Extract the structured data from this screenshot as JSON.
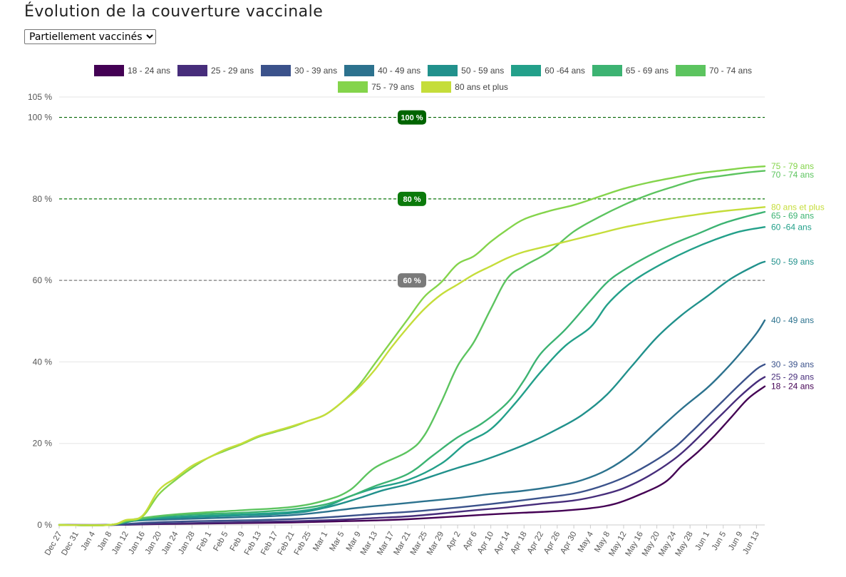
{
  "page": {
    "title": "Évolution de la couverture vaccinale",
    "selected_option": "Partiellement vaccinés"
  },
  "chart_data": {
    "type": "line",
    "title": "Évolution de la couverture vaccinale",
    "xlabel": "",
    "ylabel": "",
    "ylim": [
      0,
      105
    ],
    "yticks": [
      0,
      20,
      40,
      60,
      80,
      100,
      105
    ],
    "ytick_labels": [
      "0 %",
      "20 %",
      "40 %",
      "60 %",
      "80 %",
      "100 %",
      "105 %"
    ],
    "x_tick_labels": [
      "Dec 27",
      "Dec 31",
      "Jan 4",
      "Jan 8",
      "Jan 12",
      "Jan 16",
      "Jan 20",
      "Jan 24",
      "Jan 28",
      "Feb 1",
      "Feb 5",
      "Feb 9",
      "Feb 13",
      "Feb 17",
      "Feb 21",
      "Feb 25",
      "Mar 1",
      "Mar 5",
      "Mar 9",
      "Mar 13",
      "Mar 17",
      "Mar 21",
      "Mar 25",
      "Mar 29",
      "Apr 2",
      "Apr 6",
      "Apr 10",
      "Apr 14",
      "Apr 18",
      "Apr 22",
      "Apr 26",
      "Apr 30",
      "May 4",
      "May 8",
      "May 12",
      "May 16",
      "May 20",
      "May 24",
      "May 28",
      "Jun 1",
      "Jun 5",
      "Jun 9",
      "Jun 13"
    ],
    "x_day_offsets": [
      0,
      4,
      8,
      12,
      16,
      20,
      24,
      28,
      32,
      36,
      40,
      44,
      48,
      52,
      56,
      60,
      64,
      68,
      72,
      76,
      80,
      84,
      88,
      92,
      96,
      100,
      104,
      108,
      112,
      116,
      120,
      124,
      128,
      132,
      136,
      140,
      144,
      148,
      152,
      156,
      160,
      164,
      168
    ],
    "x_range_days": [
      0,
      170
    ],
    "x_unit": "days since Dec 27",
    "reference_lines": [
      {
        "value": 100,
        "label": "100 %",
        "color": "#006400"
      },
      {
        "value": 80,
        "label": "80 %",
        "color": "#0b7a0b"
      },
      {
        "value": 60,
        "label": "60 %",
        "color": "#7a7a7a"
      }
    ],
    "series": [
      {
        "name": "18 - 24 ans",
        "end_label": "18 - 24 ans",
        "color": "#440154",
        "points": [
          [
            0,
            0
          ],
          [
            12,
            0
          ],
          [
            24,
            0.2
          ],
          [
            40,
            0.4
          ],
          [
            56,
            0.6
          ],
          [
            68,
            0.9
          ],
          [
            76,
            1.1
          ],
          [
            84,
            1.4
          ],
          [
            96,
            2.1
          ],
          [
            104,
            2.6
          ],
          [
            112,
            3.0
          ],
          [
            120,
            3.4
          ],
          [
            128,
            4.1
          ],
          [
            134,
            5.2
          ],
          [
            140,
            7.5
          ],
          [
            146,
            10.5
          ],
          [
            150,
            14.5
          ],
          [
            154,
            18
          ],
          [
            158,
            22
          ],
          [
            162,
            26.5
          ],
          [
            166,
            31
          ],
          [
            170,
            34
          ]
        ]
      },
      {
        "name": "25 - 29 ans",
        "end_label": "25 - 29 ans",
        "color": "#472d7b",
        "points": [
          [
            0,
            0
          ],
          [
            12,
            0
          ],
          [
            24,
            0.3
          ],
          [
            40,
            0.6
          ],
          [
            56,
            0.9
          ],
          [
            68,
            1.3
          ],
          [
            76,
            1.7
          ],
          [
            84,
            2.1
          ],
          [
            92,
            2.8
          ],
          [
            100,
            3.6
          ],
          [
            108,
            4.3
          ],
          [
            116,
            5.2
          ],
          [
            124,
            6.0
          ],
          [
            130,
            7.2
          ],
          [
            136,
            9.0
          ],
          [
            142,
            12.0
          ],
          [
            148,
            16.0
          ],
          [
            152,
            19.5
          ],
          [
            156,
            23.5
          ],
          [
            160,
            27.5
          ],
          [
            164,
            31.5
          ],
          [
            168,
            35.0
          ],
          [
            170,
            36.3
          ]
        ]
      },
      {
        "name": "30 - 39 ans",
        "end_label": "30 - 39 ans",
        "color": "#3b528b",
        "points": [
          [
            0,
            0
          ],
          [
            12,
            0
          ],
          [
            20,
            0.5
          ],
          [
            32,
            0.9
          ],
          [
            48,
            1.2
          ],
          [
            60,
            1.6
          ],
          [
            68,
            2.1
          ],
          [
            76,
            2.7
          ],
          [
            84,
            3.2
          ],
          [
            92,
            3.9
          ],
          [
            100,
            4.7
          ],
          [
            108,
            5.6
          ],
          [
            116,
            6.6
          ],
          [
            124,
            7.7
          ],
          [
            130,
            9.3
          ],
          [
            136,
            11.6
          ],
          [
            142,
            14.8
          ],
          [
            148,
            18.8
          ],
          [
            152,
            22.5
          ],
          [
            156,
            26.5
          ],
          [
            160,
            30.5
          ],
          [
            164,
            34.5
          ],
          [
            168,
            38.2
          ],
          [
            170,
            39.4
          ]
        ]
      },
      {
        "name": "40 - 49 ans",
        "end_label": "40 - 49 ans",
        "color": "#2c728e",
        "points": [
          [
            0,
            0
          ],
          [
            12,
            0
          ],
          [
            18,
            1.0
          ],
          [
            28,
            1.4
          ],
          [
            44,
            1.9
          ],
          [
            56,
            2.4
          ],
          [
            64,
            3.2
          ],
          [
            72,
            4.2
          ],
          [
            80,
            5.0
          ],
          [
            88,
            5.8
          ],
          [
            96,
            6.6
          ],
          [
            104,
            7.6
          ],
          [
            112,
            8.4
          ],
          [
            120,
            9.6
          ],
          [
            126,
            11.0
          ],
          [
            132,
            13.5
          ],
          [
            138,
            17.5
          ],
          [
            144,
            23.0
          ],
          [
            150,
            28.5
          ],
          [
            156,
            33.5
          ],
          [
            160,
            37.5
          ],
          [
            164,
            42.0
          ],
          [
            168,
            47.0
          ],
          [
            170,
            50.2
          ]
        ]
      },
      {
        "name": "50 - 59 ans",
        "end_label": "50 - 59 ans",
        "color": "#21918c",
        "points": [
          [
            0,
            0
          ],
          [
            12,
            0
          ],
          [
            18,
            1.0
          ],
          [
            24,
            1.6
          ],
          [
            40,
            2.2
          ],
          [
            56,
            2.9
          ],
          [
            64,
            4.2
          ],
          [
            72,
            6.5
          ],
          [
            78,
            8.5
          ],
          [
            84,
            10.0
          ],
          [
            90,
            12.0
          ],
          [
            96,
            14.0
          ],
          [
            102,
            15.8
          ],
          [
            108,
            18.0
          ],
          [
            114,
            20.5
          ],
          [
            120,
            23.5
          ],
          [
            126,
            27.0
          ],
          [
            132,
            32.0
          ],
          [
            138,
            39.0
          ],
          [
            144,
            46.0
          ],
          [
            150,
            51.5
          ],
          [
            156,
            56.0
          ],
          [
            162,
            60.5
          ],
          [
            168,
            63.8
          ],
          [
            170,
            64.6
          ]
        ]
      },
      {
        "name": "60 -64 ans",
        "end_label": "60 -64 ans",
        "color": "#23a08a",
        "points": [
          [
            0,
            0
          ],
          [
            12,
            0
          ],
          [
            18,
            1.2
          ],
          [
            28,
            2.0
          ],
          [
            44,
            2.6
          ],
          [
            56,
            3.2
          ],
          [
            64,
            4.5
          ],
          [
            70,
            7.0
          ],
          [
            76,
            9.0
          ],
          [
            84,
            11.0
          ],
          [
            92,
            15.0
          ],
          [
            98,
            20.0
          ],
          [
            104,
            23.5
          ],
          [
            110,
            30.0
          ],
          [
            116,
            37.5
          ],
          [
            122,
            44.0
          ],
          [
            128,
            48.5
          ],
          [
            132,
            54.0
          ],
          [
            136,
            58.0
          ],
          [
            140,
            61.0
          ],
          [
            146,
            64.5
          ],
          [
            152,
            67.5
          ],
          [
            158,
            70.0
          ],
          [
            164,
            72.0
          ],
          [
            170,
            73.1
          ]
        ]
      },
      {
        "name": "65 - 69 ans",
        "end_label": "65 - 69 ans",
        "color": "#3cb372",
        "points": [
          [
            0,
            0
          ],
          [
            12,
            0
          ],
          [
            18,
            1.2
          ],
          [
            28,
            2.4
          ],
          [
            44,
            3.0
          ],
          [
            56,
            3.8
          ],
          [
            64,
            5.0
          ],
          [
            70,
            7.0
          ],
          [
            76,
            9.5
          ],
          [
            84,
            12.5
          ],
          [
            90,
            17.0
          ],
          [
            96,
            21.5
          ],
          [
            102,
            25.0
          ],
          [
            108,
            30.0
          ],
          [
            112,
            35.5
          ],
          [
            116,
            42.0
          ],
          [
            122,
            48.0
          ],
          [
            128,
            55.0
          ],
          [
            132,
            59.5
          ],
          [
            136,
            62.5
          ],
          [
            142,
            66.0
          ],
          [
            148,
            69.0
          ],
          [
            154,
            71.5
          ],
          [
            160,
            74.0
          ],
          [
            166,
            75.8
          ],
          [
            170,
            76.8
          ]
        ]
      },
      {
        "name": "70 - 74 ans",
        "end_label": "70 - 74 ans",
        "color": "#5cc45f",
        "points": [
          [
            0,
            0
          ],
          [
            12,
            0
          ],
          [
            18,
            1.4
          ],
          [
            28,
            2.6
          ],
          [
            44,
            3.6
          ],
          [
            56,
            4.4
          ],
          [
            64,
            6.0
          ],
          [
            70,
            8.5
          ],
          [
            76,
            14.0
          ],
          [
            84,
            18.0
          ],
          [
            88,
            22.0
          ],
          [
            92,
            30.0
          ],
          [
            96,
            39.0
          ],
          [
            100,
            45.0
          ],
          [
            104,
            53.0
          ],
          [
            108,
            60.5
          ],
          [
            112,
            63.5
          ],
          [
            118,
            67.0
          ],
          [
            124,
            72.0
          ],
          [
            130,
            75.5
          ],
          [
            136,
            78.5
          ],
          [
            142,
            81.0
          ],
          [
            148,
            83.0
          ],
          [
            154,
            84.8
          ],
          [
            160,
            85.7
          ],
          [
            166,
            86.5
          ],
          [
            170,
            86.9
          ]
        ]
      },
      {
        "name": "75 - 79 ans",
        "end_label": "75 - 79 ans",
        "color": "#84d44b",
        "points": [
          [
            0,
            0
          ],
          [
            12,
            0
          ],
          [
            16,
            1.0
          ],
          [
            20,
            2.0
          ],
          [
            24,
            7.5
          ],
          [
            28,
            11.0
          ],
          [
            32,
            14.0
          ],
          [
            36,
            16.5
          ],
          [
            40,
            18.2
          ],
          [
            44,
            19.8
          ],
          [
            48,
            21.6
          ],
          [
            52,
            22.8
          ],
          [
            56,
            24.0
          ],
          [
            60,
            25.5
          ],
          [
            64,
            27.0
          ],
          [
            68,
            30.0
          ],
          [
            72,
            34.0
          ],
          [
            76,
            39.5
          ],
          [
            80,
            45.0
          ],
          [
            84,
            50.5
          ],
          [
            88,
            56.0
          ],
          [
            92,
            59.5
          ],
          [
            96,
            64.0
          ],
          [
            100,
            66.0
          ],
          [
            104,
            69.5
          ],
          [
            108,
            72.5
          ],
          [
            112,
            75.0
          ],
          [
            118,
            77.0
          ],
          [
            124,
            78.5
          ],
          [
            130,
            80.5
          ],
          [
            136,
            82.5
          ],
          [
            142,
            84.0
          ],
          [
            148,
            85.2
          ],
          [
            154,
            86.3
          ],
          [
            160,
            87.0
          ],
          [
            166,
            87.7
          ],
          [
            170,
            88.0
          ]
        ]
      },
      {
        "name": "80 ans et plus",
        "end_label": "80 ans et plus",
        "color": "#c5dd3a",
        "points": [
          [
            0,
            0
          ],
          [
            12,
            0
          ],
          [
            16,
            1.2
          ],
          [
            20,
            2.2
          ],
          [
            24,
            8.5
          ],
          [
            28,
            11.5
          ],
          [
            32,
            14.5
          ],
          [
            36,
            16.5
          ],
          [
            40,
            18.5
          ],
          [
            44,
            20.0
          ],
          [
            48,
            21.8
          ],
          [
            52,
            23.0
          ],
          [
            56,
            24.2
          ],
          [
            60,
            25.5
          ],
          [
            64,
            27.0
          ],
          [
            68,
            30.0
          ],
          [
            72,
            33.5
          ],
          [
            76,
            38.0
          ],
          [
            80,
            43.5
          ],
          [
            84,
            48.5
          ],
          [
            88,
            53.0
          ],
          [
            92,
            56.5
          ],
          [
            96,
            59.0
          ],
          [
            100,
            61.5
          ],
          [
            104,
            63.5
          ],
          [
            108,
            65.5
          ],
          [
            112,
            67.0
          ],
          [
            118,
            68.5
          ],
          [
            124,
            70.0
          ],
          [
            130,
            71.5
          ],
          [
            136,
            73.0
          ],
          [
            142,
            74.2
          ],
          [
            148,
            75.3
          ],
          [
            154,
            76.2
          ],
          [
            160,
            77.0
          ],
          [
            166,
            77.6
          ],
          [
            170,
            78.0
          ]
        ]
      }
    ],
    "legend": {
      "position": "top-center",
      "rows": [
        [
          "18 - 24 ans",
          "25 - 29 ans",
          "30 - 39 ans",
          "40 - 49 ans",
          "50 - 59 ans",
          "60 -64 ans",
          "65 - 69 ans",
          "70 - 74 ans"
        ],
        [
          "75 - 79 ans",
          "80 ans et plus"
        ]
      ]
    }
  }
}
